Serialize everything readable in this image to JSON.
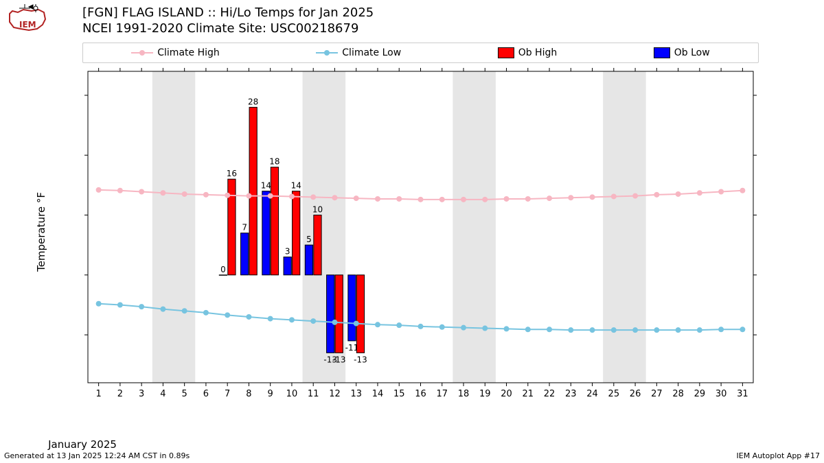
{
  "logo": {
    "iem_text": "IEM",
    "stroke": "#b22222",
    "fill": "#ffffff"
  },
  "title": {
    "line1": "[FGN] FLAG ISLAND :: Hi/Lo Temps for Jan 2025",
    "line2": "NCEI 1991-2020 Climate Site: USC00218679"
  },
  "footer": {
    "left": "Generated at 13 Jan 2025 12:24 AM CST in 0.89s",
    "right": "IEM Autoplot App #17"
  },
  "legend": {
    "items": [
      {
        "label": "Climate High",
        "type": "line",
        "color": "#f7b6c2",
        "marker": "#f7b6c2"
      },
      {
        "label": "Climate Low",
        "type": "line",
        "color": "#77c4e0",
        "marker": "#77c4e0"
      },
      {
        "label": "Ob High",
        "type": "bar",
        "color": "#ff0000"
      },
      {
        "label": "Ob Low",
        "type": "bar",
        "color": "#0000ff"
      }
    ]
  },
  "chart": {
    "type": "bar+line",
    "background_color": "#ffffff",
    "weekend_band_color": "#e6e6e6",
    "axis_color": "#000000",
    "tick_color": "#000000",
    "xlabel": "January 2025",
    "ylabel": "Temperature °F",
    "xlabel_fontsize": 15,
    "ylabel_fontsize": 15,
    "tick_fontsize": 13,
    "xlim": [
      0.5,
      31.5
    ],
    "ylim": [
      -18,
      34
    ],
    "yticks": [
      -10,
      0,
      10,
      20,
      30
    ],
    "xticks": [
      1,
      2,
      3,
      4,
      5,
      6,
      7,
      8,
      9,
      10,
      11,
      12,
      13,
      14,
      15,
      16,
      17,
      18,
      19,
      20,
      21,
      22,
      23,
      24,
      25,
      26,
      27,
      28,
      29,
      30,
      31
    ],
    "weekend_bands": [
      [
        3.5,
        5.5
      ],
      [
        10.5,
        12.5
      ],
      [
        17.5,
        19.5
      ],
      [
        24.5,
        26.5
      ]
    ],
    "climate_high": {
      "color": "#f7b6c2",
      "marker_color": "#f7b6c2",
      "line_width": 2,
      "marker_radius": 4,
      "values": [
        14.2,
        14.1,
        13.9,
        13.7,
        13.5,
        13.4,
        13.3,
        13.2,
        13.2,
        13.1,
        13.0,
        12.9,
        12.8,
        12.7,
        12.7,
        12.6,
        12.6,
        12.6,
        12.6,
        12.7,
        12.7,
        12.8,
        12.9,
        13.0,
        13.1,
        13.2,
        13.4,
        13.5,
        13.7,
        13.9,
        14.1
      ]
    },
    "climate_low": {
      "color": "#77c4e0",
      "marker_color": "#77c4e0",
      "line_width": 2,
      "marker_radius": 4,
      "values": [
        -4.8,
        -5.0,
        -5.3,
        -5.7,
        -6.0,
        -6.3,
        -6.7,
        -7.0,
        -7.3,
        -7.5,
        -7.7,
        -7.9,
        -8.1,
        -8.3,
        -8.4,
        -8.6,
        -8.7,
        -8.8,
        -8.9,
        -9.0,
        -9.1,
        -9.1,
        -9.2,
        -9.2,
        -9.2,
        -9.2,
        -9.2,
        -9.2,
        -9.2,
        -9.1,
        -9.1
      ]
    },
    "ob_high": {
      "color": "#ff0000",
      "edge": "#000000",
      "bar_half_width": 0.18,
      "points": [
        {
          "x": 7,
          "v": 16
        },
        {
          "x": 8,
          "v": 28
        },
        {
          "x": 9,
          "v": 18
        },
        {
          "x": 10,
          "v": 14
        },
        {
          "x": 11,
          "v": 10
        },
        {
          "x": 12,
          "v": -13
        },
        {
          "x": 13,
          "v": -13
        }
      ]
    },
    "ob_low": {
      "color": "#0000ff",
      "edge": "#000000",
      "bar_half_width": 0.18,
      "points": [
        {
          "x": 7,
          "v": 0
        },
        {
          "x": 8,
          "v": 7
        },
        {
          "x": 9,
          "v": 14
        },
        {
          "x": 10,
          "v": 3
        },
        {
          "x": 11,
          "v": 5
        },
        {
          "x": 12,
          "v": -13
        },
        {
          "x": 13,
          "v": -11
        }
      ]
    }
  }
}
